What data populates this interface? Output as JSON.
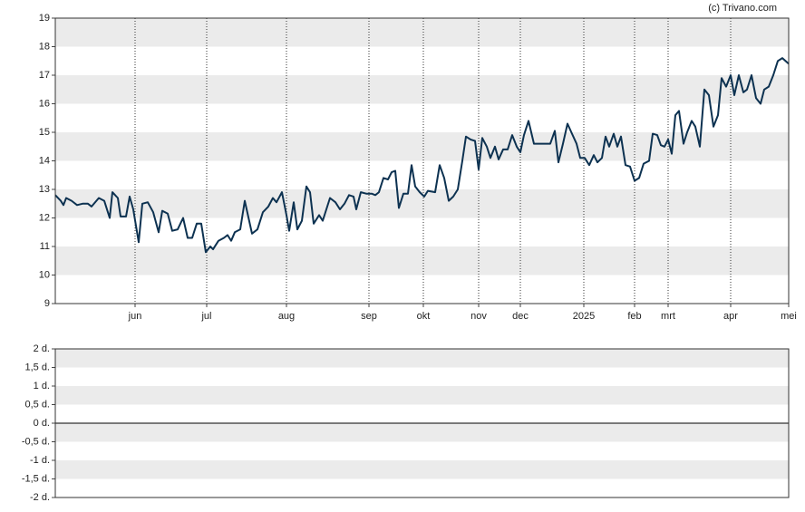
{
  "copyright": "(c) Trivano.com",
  "chart_data": [
    {
      "type": "line",
      "color": "#0d3251",
      "band_fill": "#ebebeb",
      "xlim": [
        0,
        809
      ],
      "ylim": [
        9,
        19
      ],
      "yticks": [
        9,
        10,
        11,
        12,
        13,
        14,
        15,
        16,
        17,
        18,
        19
      ],
      "xticks": [
        {
          "value": 88,
          "label": "jun"
        },
        {
          "value": 167,
          "label": "jul"
        },
        {
          "value": 255,
          "label": "aug"
        },
        {
          "value": 346,
          "label": "sep"
        },
        {
          "value": 406,
          "label": "okt"
        },
        {
          "value": 467,
          "label": "nov"
        },
        {
          "value": 513,
          "label": "dec"
        },
        {
          "value": 583,
          "label": "2025"
        },
        {
          "value": 639,
          "label": "feb"
        },
        {
          "value": 676,
          "label": "mrt"
        },
        {
          "value": 745,
          "label": "apr"
        },
        {
          "value": 809,
          "label": "mei"
        }
      ],
      "x": [
        0,
        6,
        9,
        12,
        18,
        24,
        30,
        36,
        40,
        48,
        54,
        60,
        63,
        69,
        72,
        78,
        82,
        86,
        92,
        96,
        102,
        108,
        114,
        118,
        124,
        129,
        135,
        141,
        146,
        151,
        156,
        161,
        166,
        171,
        174,
        180,
        186,
        190,
        194,
        198,
        204,
        209,
        217,
        223,
        229,
        235,
        240,
        244,
        250,
        255,
        258,
        263,
        267,
        272,
        277,
        281,
        285,
        291,
        295,
        303,
        309,
        314,
        319,
        324,
        329,
        332,
        337,
        343,
        349,
        353,
        357,
        362,
        367,
        371,
        375,
        379,
        384,
        389,
        393,
        397,
        402,
        407,
        411,
        419,
        424,
        429,
        434,
        439,
        444,
        449,
        453,
        458,
        463,
        467,
        471,
        476,
        480,
        485,
        489,
        494,
        499,
        504,
        509,
        513,
        517,
        522,
        528,
        535,
        541,
        546,
        551,
        555,
        560,
        565,
        570,
        575,
        579,
        584,
        589,
        594,
        598,
        603,
        607,
        611,
        616,
        620,
        624,
        629,
        634,
        639,
        644,
        649,
        655,
        659,
        664,
        668,
        672,
        676,
        680,
        684,
        688,
        693,
        697,
        702,
        706,
        711,
        716,
        721,
        726,
        731,
        735,
        740,
        745,
        749,
        754,
        759,
        763,
        768,
        773,
        778,
        782,
        787,
        792,
        797,
        802,
        809
      ],
      "values": [
        12.8,
        12.6,
        12.45,
        12.7,
        12.6,
        12.45,
        12.5,
        12.5,
        12.4,
        12.7,
        12.6,
        12.0,
        12.9,
        12.7,
        12.05,
        12.05,
        12.75,
        12.3,
        11.15,
        12.5,
        12.55,
        12.2,
        11.5,
        12.25,
        12.15,
        11.55,
        11.6,
        12.0,
        11.3,
        11.3,
        11.8,
        11.8,
        10.8,
        11.0,
        10.9,
        11.2,
        11.3,
        11.4,
        11.2,
        11.5,
        11.6,
        12.6,
        11.45,
        11.6,
        12.2,
        12.4,
        12.7,
        12.55,
        12.9,
        12.1,
        11.55,
        12.55,
        11.6,
        11.9,
        13.1,
        12.9,
        11.8,
        12.1,
        11.9,
        12.7,
        12.55,
        12.3,
        12.5,
        12.8,
        12.75,
        12.3,
        12.9,
        12.85,
        12.85,
        12.8,
        12.9,
        13.4,
        13.35,
        13.6,
        13.65,
        12.35,
        12.85,
        12.85,
        13.85,
        13.1,
        12.9,
        12.75,
        12.95,
        12.9,
        13.85,
        13.4,
        12.6,
        12.75,
        13.0,
        14.0,
        14.85,
        14.75,
        14.7,
        13.7,
        14.8,
        14.5,
        14.1,
        14.5,
        14.05,
        14.4,
        14.4,
        14.9,
        14.5,
        14.3,
        14.9,
        15.4,
        14.6,
        14.6,
        14.6,
        14.6,
        15.05,
        13.95,
        14.6,
        15.3,
        14.95,
        14.6,
        14.1,
        14.1,
        13.85,
        14.2,
        13.95,
        14.1,
        14.85,
        14.5,
        14.95,
        14.5,
        14.85,
        13.85,
        13.8,
        13.3,
        13.4,
        13.9,
        14.0,
        14.95,
        14.9,
        14.55,
        14.5,
        14.75,
        14.25,
        15.6,
        15.75,
        14.6,
        15.0,
        15.4,
        15.2,
        14.5,
        16.5,
        16.3,
        15.2,
        15.6,
        16.9,
        16.6,
        17.0,
        16.3,
        17.0,
        16.4,
        16.5,
        17.0,
        16.2,
        16.0,
        16.5,
        16.6,
        17.0,
        17.5,
        17.6,
        17.4
      ]
    },
    {
      "type": "empty",
      "band_fill": "#ebebeb",
      "ylim": [
        -2,
        2
      ],
      "yticks": [
        {
          "value": -2,
          "label": "-2 d."
        },
        {
          "value": -1.5,
          "label": "-1,5 d."
        },
        {
          "value": -1,
          "label": "-1 d."
        },
        {
          "value": -0.5,
          "label": "-0,5 d."
        },
        {
          "value": 0,
          "label": "0 d."
        },
        {
          "value": 0.5,
          "label": "0,5 d."
        },
        {
          "value": 1,
          "label": "1 d."
        },
        {
          "value": 1.5,
          "label": "1,5 d."
        },
        {
          "value": 2,
          "label": "2 d."
        }
      ],
      "zero_line": true
    }
  ]
}
